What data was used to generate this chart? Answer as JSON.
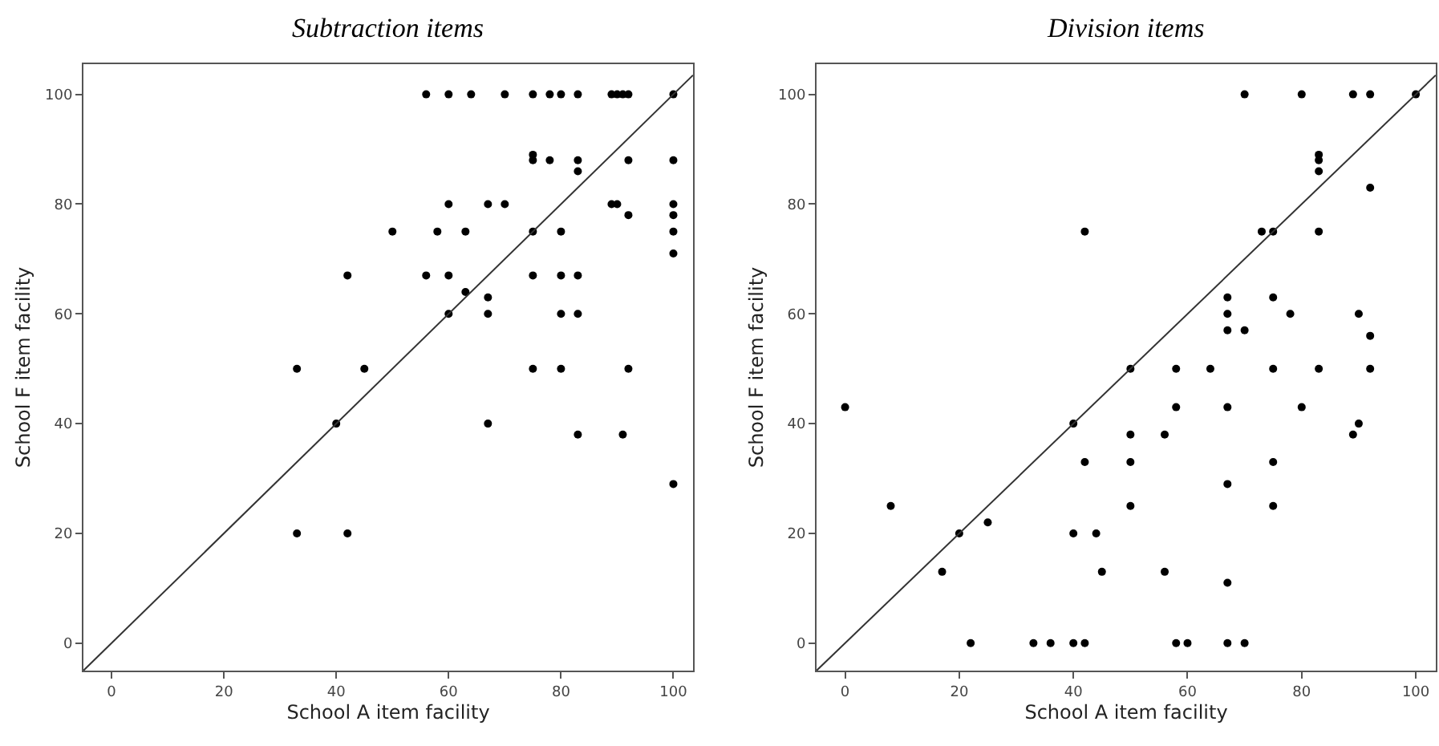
{
  "chart_data": [
    {
      "type": "scatter",
      "title": "Subtraction items",
      "xlabel": "School A item facility",
      "ylabel": "School F item facility",
      "xlim": [
        -5,
        103.5
      ],
      "ylim": [
        -5,
        105.5
      ],
      "xticks": [
        0,
        20,
        40,
        60,
        80,
        100
      ],
      "yticks": [
        0,
        20,
        40,
        60,
        80,
        100
      ],
      "grid": false,
      "series": [
        {
          "type": "scatter",
          "marker": "circle",
          "color": "#000000",
          "x": [
            56,
            60,
            64,
            70,
            75,
            78,
            80,
            83,
            89,
            90,
            91,
            92,
            100,
            75,
            75,
            78,
            83,
            83,
            92,
            100,
            60,
            67,
            70,
            89,
            90,
            100,
            92,
            100,
            50,
            58,
            63,
            75,
            80,
            100,
            100,
            42,
            56,
            60,
            75,
            80,
            83,
            63,
            67,
            60,
            67,
            80,
            83,
            33,
            45,
            75,
            80,
            92,
            40,
            67,
            83,
            91,
            100,
            33,
            42
          ],
          "values": [
            100,
            100,
            100,
            100,
            100,
            100,
            100,
            100,
            100,
            100,
            100,
            100,
            100,
            89,
            88,
            88,
            88,
            86,
            88,
            88,
            80,
            80,
            80,
            80,
            80,
            80,
            78,
            78,
            75,
            75,
            75,
            75,
            75,
            75,
            71,
            67,
            67,
            67,
            67,
            67,
            67,
            64,
            63,
            60,
            60,
            60,
            60,
            50,
            50,
            50,
            50,
            50,
            40,
            40,
            38,
            38,
            29,
            20,
            20
          ]
        },
        {
          "type": "line",
          "marker": "none",
          "color": "#333333",
          "x": [
            -5,
            103.5
          ],
          "values": [
            -5,
            103.5
          ]
        }
      ]
    },
    {
      "type": "scatter",
      "title": "Division items",
      "xlabel": "School A item facility",
      "ylabel": "School F item facility",
      "xlim": [
        -5,
        103.5
      ],
      "ylim": [
        -5,
        105.5
      ],
      "xticks": [
        0,
        20,
        40,
        60,
        80,
        100
      ],
      "yticks": [
        0,
        20,
        40,
        60,
        80,
        100
      ],
      "grid": false,
      "series": [
        {
          "type": "scatter",
          "marker": "circle",
          "color": "#000000",
          "x": [
            70,
            80,
            89,
            92,
            100,
            83,
            83,
            83,
            92,
            42,
            73,
            75,
            83,
            67,
            75,
            67,
            78,
            90,
            67,
            70,
            92,
            50,
            58,
            64,
            75,
            83,
            92,
            0,
            58,
            67,
            80,
            40,
            90,
            50,
            56,
            89,
            42,
            50,
            75,
            67,
            8,
            50,
            75,
            25,
            20,
            40,
            44,
            17,
            45,
            56,
            67,
            22,
            33,
            36,
            40,
            42,
            58,
            60,
            67,
            70
          ],
          "values": [
            100,
            100,
            100,
            100,
            100,
            89,
            88,
            86,
            83,
            75,
            75,
            75,
            75,
            63,
            63,
            60,
            60,
            60,
            57,
            57,
            56,
            50,
            50,
            50,
            50,
            50,
            50,
            43,
            43,
            43,
            43,
            40,
            40,
            38,
            38,
            38,
            33,
            33,
            33,
            29,
            25,
            25,
            25,
            22,
            20,
            20,
            20,
            13,
            13,
            13,
            11,
            0,
            0,
            0,
            0,
            0,
            0,
            0,
            0,
            0
          ]
        },
        {
          "type": "line",
          "marker": "none",
          "color": "#333333",
          "x": [
            -5,
            103.5
          ],
          "values": [
            -5,
            103.5
          ]
        }
      ]
    }
  ]
}
